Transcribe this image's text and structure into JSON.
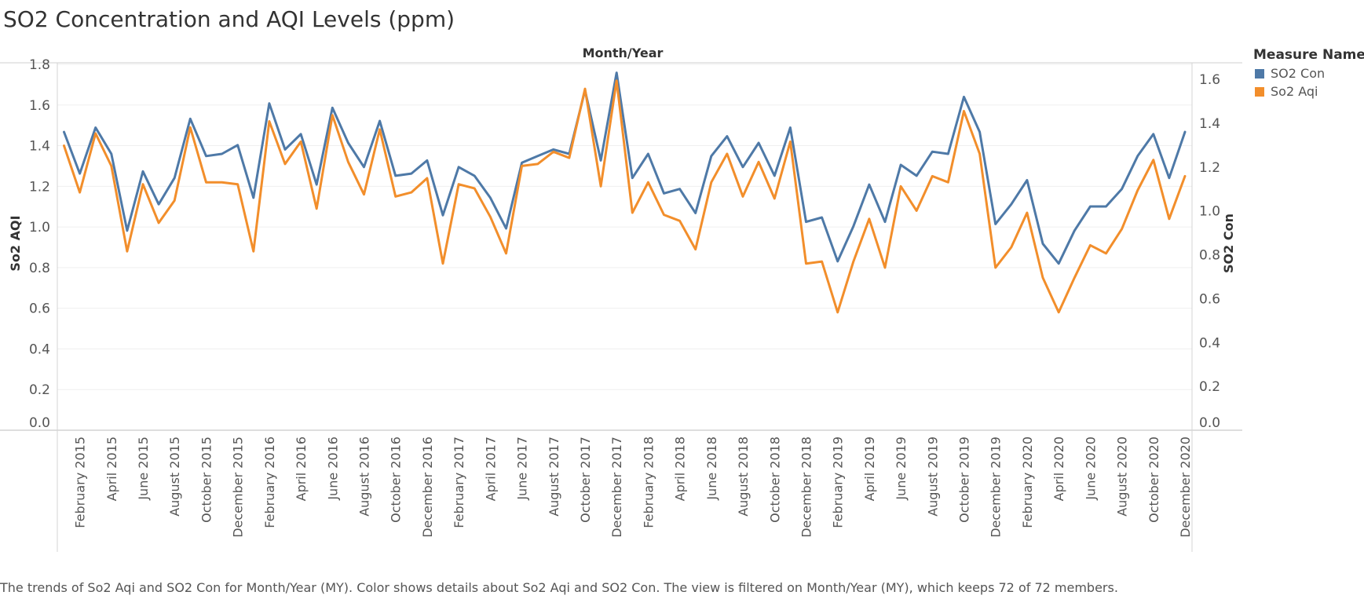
{
  "title": "SO2 Concentration and AQI Levels (ppm)",
  "footer": "The trends of So2 Aqi and SO2 Con for Month/Year (MY).  Color shows details about So2 Aqi and SO2 Con. The view is filtered on Month/Year (MY), which keeps 72 of 72 members.",
  "legend": {
    "title": "Measure Names",
    "items": [
      {
        "label": "SO2 Con",
        "color": "#4e79a7"
      },
      {
        "label": "So2 Aqi",
        "color": "#f28e2b"
      }
    ]
  },
  "chart_data": {
    "type": "line",
    "title": "SO2 Concentration and AQI Levels (ppm)",
    "header_label": "Month/Year",
    "ylabel_left": "So2 AQI",
    "ylabel_right": "SO2 Con",
    "ylim_left": [
      0,
      1.85
    ],
    "ylim_right": [
      0,
      1.72
    ],
    "yticks_left": [
      "0.0",
      "0.2",
      "0.4",
      "0.6",
      "0.8",
      "1.0",
      "1.2",
      "1.4",
      "1.6",
      "1.8"
    ],
    "yticks_right": [
      "0.0",
      "0.2",
      "0.4",
      "0.6",
      "0.8",
      "1.0",
      "1.2",
      "1.4",
      "1.6"
    ],
    "x_tick_labels": [
      "February 2015",
      "April 2015",
      "June 2015",
      "August 2015",
      "October 2015",
      "December 2015",
      "February 2016",
      "April 2016",
      "June 2016",
      "August 2016",
      "October 2016",
      "December 2016",
      "February 2017",
      "April 2017",
      "June 2017",
      "August 2017",
      "October 2017",
      "December 2017",
      "February 2018",
      "April 2018",
      "June 2018",
      "August 2018",
      "October 2018",
      "December 2018",
      "February 2019",
      "April 2019",
      "June 2019",
      "August 2019",
      "October 2019",
      "December 2019",
      "February 2020",
      "April 2020",
      "June 2020",
      "August 2020",
      "October 2020",
      "December 2020"
    ],
    "x_range": [
      "January 2015",
      "December 2020"
    ],
    "grid": true,
    "legend_position": "right",
    "series": [
      {
        "name": "SO2 Con",
        "axis": "right",
        "color": "#4e79a7",
        "values": [
          1.36,
          1.17,
          1.38,
          1.26,
          0.91,
          1.18,
          1.03,
          1.15,
          1.42,
          1.25,
          1.26,
          1.3,
          1.06,
          1.49,
          1.28,
          1.35,
          1.12,
          1.47,
          1.31,
          1.2,
          1.41,
          1.16,
          1.17,
          1.23,
          0.98,
          1.2,
          1.16,
          1.06,
          0.92,
          1.22,
          1.25,
          1.28,
          1.26,
          1.55,
          1.23,
          1.63,
          1.15,
          1.26,
          1.08,
          1.1,
          0.99,
          1.25,
          1.34,
          1.2,
          1.31,
          1.16,
          1.38,
          0.95,
          0.97,
          0.77,
          0.93,
          1.12,
          0.95,
          1.21,
          1.16,
          1.27,
          1.26,
          1.52,
          1.36,
          0.94,
          1.03,
          1.14,
          0.85,
          0.76,
          0.91,
          1.02,
          1.02,
          1.1,
          1.25,
          1.35,
          1.15,
          1.36
        ]
      },
      {
        "name": "So2 Aqi",
        "axis": "left",
        "color": "#f28e2b",
        "values": [
          1.4,
          1.17,
          1.46,
          1.3,
          0.88,
          1.21,
          1.02,
          1.13,
          1.49,
          1.22,
          1.22,
          1.21,
          0.88,
          1.52,
          1.31,
          1.42,
          1.09,
          1.55,
          1.32,
          1.16,
          1.48,
          1.15,
          1.17,
          1.24,
          0.82,
          1.21,
          1.19,
          1.05,
          0.87,
          1.3,
          1.31,
          1.37,
          1.34,
          1.68,
          1.2,
          1.72,
          1.07,
          1.22,
          1.06,
          1.03,
          0.89,
          1.22,
          1.36,
          1.15,
          1.32,
          1.14,
          1.42,
          0.82,
          0.83,
          0.58,
          0.83,
          1.04,
          0.8,
          1.2,
          1.08,
          1.25,
          1.22,
          1.57,
          1.36,
          0.8,
          0.9,
          1.07,
          0.75,
          0.58,
          0.75,
          0.91,
          0.87,
          0.99,
          1.18,
          1.33,
          1.04,
          1.25
        ]
      }
    ]
  }
}
